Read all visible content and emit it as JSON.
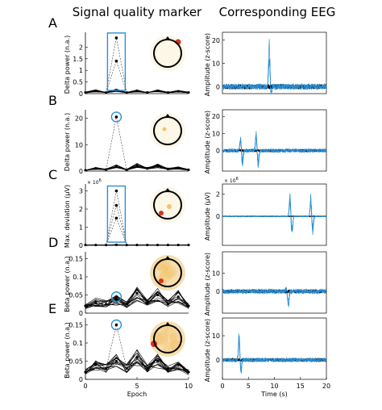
{
  "figure": {
    "left_column_title": "Signal quality marker",
    "right_column_title": "Corresponding EEG",
    "colors": {
      "eeg_blue": "#2b8fd6",
      "eeg_black": "#000000",
      "highlight_blue": "#2b8fd6",
      "marker_black": "#000000",
      "topo_low": "#fbf3dc",
      "topo_mid": "#f3c46a",
      "topo_high": "#d9331a"
    }
  },
  "chart_data": [
    {
      "panel": "A",
      "type": "line",
      "side": "marker",
      "ylabel": "Delta power (n.a.)",
      "xlabel": "",
      "xlim": [
        0,
        10
      ],
      "ylim": [
        0,
        2.5
      ],
      "yticks": [
        "0",
        "0.5",
        "1",
        "1.5",
        "2"
      ],
      "xticks": [],
      "highlight": "box",
      "highlight_epoch": 3,
      "peak_values": [
        2.4,
        1.4
      ],
      "series": [
        {
          "x": [
            0,
            1,
            2,
            3,
            4,
            5,
            6,
            7,
            8,
            9,
            10
          ],
          "values": [
            0.05,
            0.12,
            0.05,
            0.15,
            0.05,
            0.12,
            0.05,
            0.12,
            0.05,
            0.1,
            0.05
          ]
        }
      ],
      "topo_hotspots": [
        "top-right"
      ]
    },
    {
      "panel": "B",
      "type": "line",
      "side": "marker",
      "ylabel": "Delta power (n.a.)",
      "xlabel": "",
      "xlim": [
        0,
        10
      ],
      "ylim": [
        0,
        22
      ],
      "yticks": [
        "0",
        "10",
        "20"
      ],
      "xticks": [],
      "highlight": "circle",
      "highlight_epoch": 3,
      "peak_values": [
        20.5
      ],
      "series": [
        {
          "x": [
            0,
            1,
            2,
            3,
            4,
            5,
            6,
            7,
            8,
            9,
            10
          ],
          "values": [
            0.3,
            1.0,
            0.6,
            1.8,
            0.5,
            2.2,
            1.0,
            2.0,
            0.8,
            1.2,
            0.5
          ]
        }
      ],
      "topo_hotspots": [
        "center-left"
      ]
    },
    {
      "panel": "C",
      "type": "line",
      "side": "marker",
      "ylabel": "Max. deviation (μV)",
      "xlabel": "",
      "exponent_label": "× 10",
      "exponent_power": "6",
      "xlim": [
        0,
        10
      ],
      "ylim": [
        0,
        3.2
      ],
      "yticks": [
        "0",
        "1",
        "2",
        "3"
      ],
      "xticks": [],
      "highlight": "box",
      "highlight_epoch": 3,
      "peak_values": [
        3.0,
        2.2,
        1.5
      ],
      "series": [
        {
          "x": [
            0,
            1,
            2,
            3,
            4,
            5,
            6,
            7,
            8,
            9,
            10
          ],
          "values": [
            0.02,
            0.02,
            0.02,
            0.03,
            0.02,
            0.02,
            0.02,
            0.02,
            0.02,
            0.02,
            0.02
          ]
        }
      ],
      "topo_hotspots": [
        "center",
        "bottom-left"
      ]
    },
    {
      "panel": "D",
      "type": "line",
      "side": "marker",
      "ylabel": "Beta power (n.a.)",
      "xlabel": "",
      "xlim": [
        0,
        10
      ],
      "ylim": [
        0,
        0.16
      ],
      "yticks": [
        "0",
        "0.05",
        "0.1",
        "0.15"
      ],
      "xticks": [],
      "highlight": "circle",
      "highlight_epoch": 3,
      "peak_values": [
        0.045
      ],
      "series": [
        {
          "x": [
            0,
            1,
            2,
            3,
            4,
            5,
            6,
            7,
            8,
            9,
            10
          ],
          "values": [
            0.02,
            0.03,
            0.025,
            0.035,
            0.025,
            0.055,
            0.03,
            0.05,
            0.025,
            0.045,
            0.02
          ]
        }
      ],
      "topo_hotspots": [
        "bottom-left"
      ]
    },
    {
      "panel": "E",
      "type": "line",
      "side": "marker",
      "ylabel": "Beta power (n.a.)",
      "xlabel": "Epoch",
      "xlim": [
        0,
        10
      ],
      "ylim": [
        0,
        0.16
      ],
      "yticks": [
        "0",
        "0.05",
        "0.1",
        "0.15"
      ],
      "xticks": [
        "0",
        "5",
        "10"
      ],
      "highlight": "circle",
      "highlight_epoch": 3,
      "peak_values": [
        0.15
      ],
      "series": [
        {
          "x": [
            0,
            1,
            2,
            3,
            4,
            5,
            6,
            7,
            8,
            9,
            10
          ],
          "values": [
            0.02,
            0.04,
            0.03,
            0.05,
            0.03,
            0.06,
            0.03,
            0.05,
            0.03,
            0.04,
            0.02
          ]
        }
      ],
      "topo_hotspots": [
        "left-edge"
      ]
    },
    {
      "panel": "A",
      "type": "line",
      "side": "eeg",
      "ylabel": "Amplitude (z-score)",
      "xlabel": "",
      "xlim": [
        0,
        20
      ],
      "ylim": [
        -3,
        22
      ],
      "yticks": [
        "0",
        "10",
        "20"
      ],
      "xticks": [],
      "events": [
        {
          "t": 9.0,
          "amp": 20,
          "neg": -4
        }
      ],
      "noise": 1.2
    },
    {
      "panel": "B",
      "type": "line",
      "side": "eeg",
      "ylabel": "Amplitude (z-score)",
      "xlabel": "",
      "xlim": [
        0,
        20
      ],
      "ylim": [
        -12,
        22
      ],
      "yticks": [
        "0",
        "10",
        "20"
      ],
      "xticks": [],
      "events": [
        {
          "t": 3.5,
          "amp": 10,
          "neg": -10
        },
        {
          "t": 6.5,
          "amp": 15,
          "neg": -12
        }
      ],
      "noise": 1.0
    },
    {
      "panel": "C",
      "type": "line",
      "side": "eeg",
      "ylabel": "Amplitude (μV)",
      "xlabel": "",
      "exponent_label": "× 10",
      "exponent_power": "6",
      "xlim": [
        0,
        20
      ],
      "ylim": [
        -2.6,
        2.6
      ],
      "yticks": [
        "0",
        "2"
      ],
      "xticks": [],
      "events": [
        {
          "t": 13.0,
          "amp": 2.2,
          "neg": -2.2
        },
        {
          "t": 17.0,
          "amp": 2.0,
          "neg": -1.8
        }
      ],
      "noise": 0.05
    },
    {
      "panel": "D",
      "type": "line",
      "side": "eeg",
      "ylabel": "Amplitude (z-score)",
      "xlabel": "",
      "xlim": [
        0,
        20
      ],
      "ylim": [
        -12,
        20
      ],
      "yticks": [
        "0",
        "10"
      ],
      "xticks": [],
      "events": [
        {
          "t": 12.3,
          "amp": 3,
          "neg": -11
        }
      ],
      "noise": 1.2
    },
    {
      "panel": "E",
      "type": "line",
      "side": "eeg",
      "ylabel": "Amplitude (z-score)",
      "xlabel": "Time (s)",
      "xlim": [
        0,
        20
      ],
      "ylim": [
        -8,
        16
      ],
      "yticks": [
        "0",
        "10"
      ],
      "xticks": [
        "0",
        "5",
        "10",
        "15",
        "20"
      ],
      "events": [
        {
          "t": 3.2,
          "amp": 13,
          "neg": -6
        }
      ],
      "noise": 0.8
    }
  ]
}
